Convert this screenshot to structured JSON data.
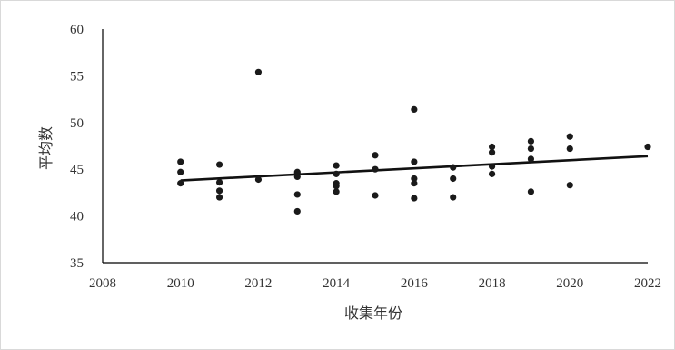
{
  "chart_data": {
    "type": "scatter",
    "title": "",
    "xlabel": "收集年份",
    "ylabel": "平均数",
    "xlim": [
      2008,
      2022
    ],
    "ylim": [
      35,
      60
    ],
    "x_ticks": [
      2008,
      2010,
      2012,
      2014,
      2016,
      2018,
      2020,
      2022
    ],
    "y_ticks": [
      35,
      40,
      45,
      50,
      55,
      60
    ],
    "grid": false,
    "legend": "none",
    "colors": {
      "points": "#1a1a1a",
      "trendline": "#111111",
      "axis": "#000000"
    },
    "points": [
      {
        "x": 2010,
        "y": 45.8
      },
      {
        "x": 2010,
        "y": 44.7
      },
      {
        "x": 2010,
        "y": 43.5
      },
      {
        "x": 2011,
        "y": 45.5
      },
      {
        "x": 2011,
        "y": 43.6
      },
      {
        "x": 2011,
        "y": 42.7
      },
      {
        "x": 2011,
        "y": 42.0
      },
      {
        "x": 2012,
        "y": 55.4
      },
      {
        "x": 2012,
        "y": 43.9
      },
      {
        "x": 2013,
        "y": 44.7
      },
      {
        "x": 2013,
        "y": 44.5
      },
      {
        "x": 2013,
        "y": 44.2
      },
      {
        "x": 2013,
        "y": 42.3
      },
      {
        "x": 2013,
        "y": 40.5
      },
      {
        "x": 2014,
        "y": 45.4
      },
      {
        "x": 2014,
        "y": 44.5
      },
      {
        "x": 2014,
        "y": 43.5
      },
      {
        "x": 2014,
        "y": 43.2
      },
      {
        "x": 2014,
        "y": 42.6
      },
      {
        "x": 2015,
        "y": 46.5
      },
      {
        "x": 2015,
        "y": 45.0
      },
      {
        "x": 2015,
        "y": 42.2
      },
      {
        "x": 2016,
        "y": 51.4
      },
      {
        "x": 2016,
        "y": 45.8
      },
      {
        "x": 2016,
        "y": 44.0
      },
      {
        "x": 2016,
        "y": 43.5
      },
      {
        "x": 2016,
        "y": 41.9
      },
      {
        "x": 2017,
        "y": 45.2
      },
      {
        "x": 2017,
        "y": 44.0
      },
      {
        "x": 2017,
        "y": 42.0
      },
      {
        "x": 2018,
        "y": 47.4
      },
      {
        "x": 2018,
        "y": 46.8
      },
      {
        "x": 2018,
        "y": 45.3
      },
      {
        "x": 2018,
        "y": 44.5
      },
      {
        "x": 2019,
        "y": 48.0
      },
      {
        "x": 2019,
        "y": 47.2
      },
      {
        "x": 2019,
        "y": 46.1
      },
      {
        "x": 2019,
        "y": 42.6
      },
      {
        "x": 2020,
        "y": 48.5
      },
      {
        "x": 2020,
        "y": 47.2
      },
      {
        "x": 2020,
        "y": 43.3
      },
      {
        "x": 2022,
        "y": 47.4
      }
    ],
    "trendline": {
      "type": "linear",
      "x": [
        2010,
        2022
      ],
      "y": [
        43.8,
        46.4
      ]
    }
  }
}
